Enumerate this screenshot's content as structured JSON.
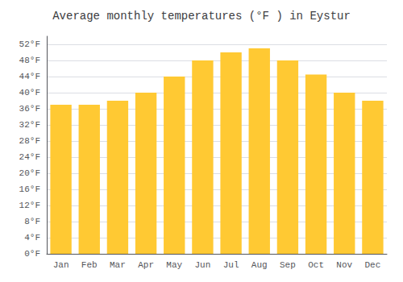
{
  "chart_data": {
    "type": "bar",
    "title": "Average monthly temperatures (°F ) in Eystur",
    "categories": [
      "Jan",
      "Feb",
      "Mar",
      "Apr",
      "May",
      "Jun",
      "Jul",
      "Aug",
      "Sep",
      "Oct",
      "Nov",
      "Dec"
    ],
    "values": [
      37.0,
      37.0,
      38.0,
      40.0,
      44.0,
      48.0,
      50.0,
      51.0,
      48.0,
      44.5,
      40.0,
      38.0
    ],
    "color": "#FFC933",
    "ylim": [
      0,
      54
    ],
    "yticks": [
      {
        "value": 0,
        "label": "0°F"
      },
      {
        "value": 4,
        "label": "4°F"
      },
      {
        "value": 8,
        "label": "8°F"
      },
      {
        "value": 12,
        "label": "12°F"
      },
      {
        "value": 16,
        "label": "16°F"
      },
      {
        "value": 20,
        "label": "20°F"
      },
      {
        "value": 24,
        "label": "24°F"
      },
      {
        "value": 28,
        "label": "28°F"
      },
      {
        "value": 32,
        "label": "32°F"
      },
      {
        "value": 36,
        "label": "36°F"
      },
      {
        "value": 40,
        "label": "40°F"
      },
      {
        "value": 44,
        "label": "44°F"
      },
      {
        "value": 48,
        "label": "48°F"
      },
      {
        "value": 52,
        "label": "52°F"
      }
    ],
    "grid": true
  }
}
